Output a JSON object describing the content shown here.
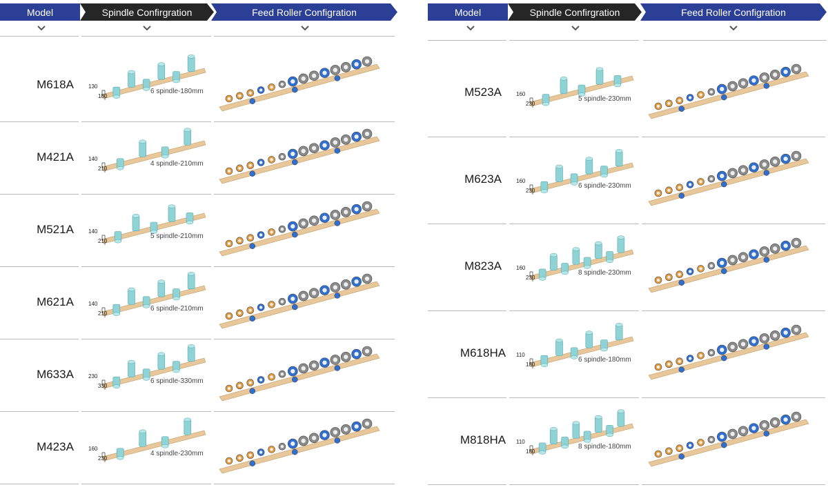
{
  "headers": {
    "model": "Model",
    "spindle": "Spindle Confirgration",
    "feed": "Feed Roller Configration"
  },
  "colors": {
    "header_blue": "#2b3f96",
    "header_dark": "#262626",
    "beam": "#e8c79a",
    "spindle": "#8fd3d6",
    "roller_blue": "#2f6fd1",
    "roller_orange": "#e39a3b",
    "roller_grey": "#8b8b8b"
  },
  "left": [
    {
      "model": "M618A",
      "spindle": "6 spindle-180mm",
      "dim_a": "130",
      "dim_b": "180",
      "spindles": 6
    },
    {
      "model": "M421A",
      "spindle": "4 spindle-210mm",
      "dim_a": "140",
      "dim_b": "210",
      "spindles": 4
    },
    {
      "model": "M521A",
      "spindle": "5 spindle-210mm",
      "dim_a": "140",
      "dim_b": "210",
      "spindles": 5
    },
    {
      "model": "M621A",
      "spindle": "6 spindle-210mm",
      "dim_a": "140",
      "dim_b": "210",
      "spindles": 6
    },
    {
      "model": "M633A",
      "spindle": "6 spindle-330mm",
      "dim_a": "230",
      "dim_b": "330",
      "spindles": 6
    },
    {
      "model": "M423A",
      "spindle": "4 spindle-230mm",
      "dim_a": "160",
      "dim_b": "230",
      "spindles": 4
    }
  ],
  "right": [
    {
      "model": "M523A",
      "spindle": "5 spindle-230mm",
      "dim_a": "160",
      "dim_b": "230",
      "spindles": 5
    },
    {
      "model": "M623A",
      "spindle": "6 spindle-230mm",
      "dim_a": "160",
      "dim_b": "230",
      "spindles": 6
    },
    {
      "model": "M823A",
      "spindle": "8 spindle-230mm",
      "dim_a": "160",
      "dim_b": "230",
      "spindles": 8
    },
    {
      "model": "M618HA",
      "spindle": "6 spindle-180mm",
      "dim_a": "110",
      "dim_b": "180",
      "spindles": 6
    },
    {
      "model": "M818HA",
      "spindle": "8 spindle-180mm",
      "dim_a": "110",
      "dim_b": "180",
      "spindles": 8
    }
  ]
}
